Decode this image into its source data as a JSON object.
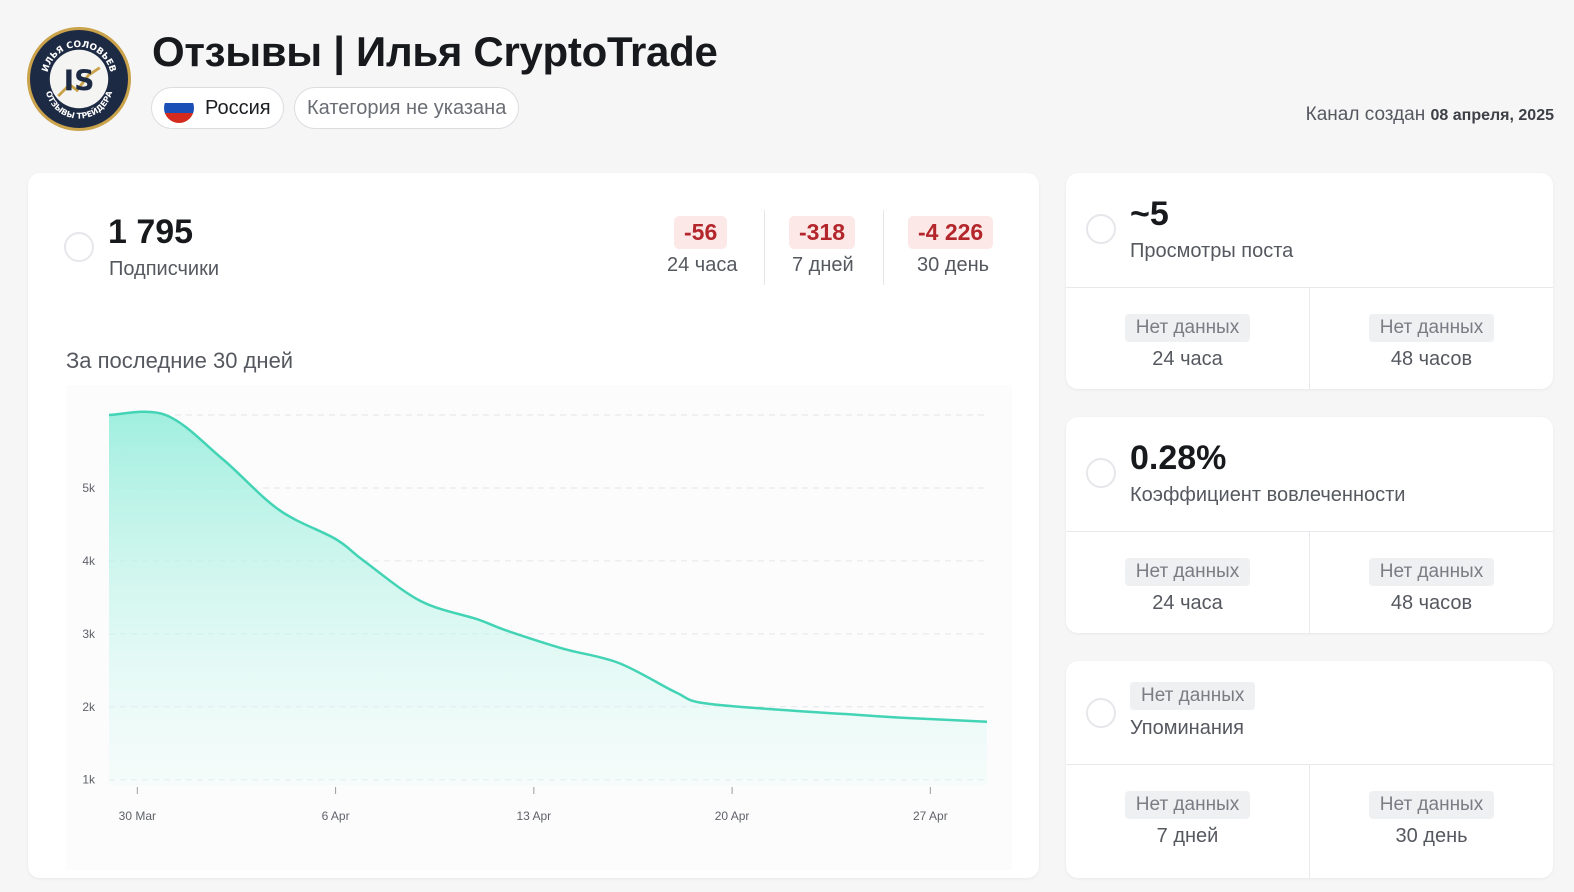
{
  "header": {
    "title": "Отзывы | Илья CryptoTrade",
    "logo_text_top": "ИЛЬЯ СОЛОВЬЕВ",
    "logo_text_bottom": "ОТЗЫВЫ ТРЕЙДЕРА",
    "logo_monogram": "IS",
    "country": "Россия",
    "category": "Категория не указана",
    "created_label": "Канал создан",
    "created_date": "08 апреля, 2025"
  },
  "subscribers": {
    "value": "1 795",
    "label": "Подписчики",
    "deltas": [
      {
        "value": "-56",
        "label": "24 часа"
      },
      {
        "value": "-318",
        "label": "7 дней"
      },
      {
        "value": "-4 226",
        "label": "30 день"
      }
    ],
    "chart_title": "За последние 30 дней"
  },
  "chart_data": {
    "type": "area",
    "title": "За последние 30 дней",
    "xlabel": "",
    "ylabel": "",
    "x_ticks": [
      "30 Mar",
      "6 Apr",
      "13 Apr",
      "20 Apr",
      "27 Apr"
    ],
    "y_ticks": [
      "1k",
      "2k",
      "3k",
      "4k",
      "5k"
    ],
    "ylim": [
      900,
      6000
    ],
    "grid": true,
    "color": "#43d3b5",
    "x": [
      0,
      2,
      4,
      6,
      8,
      9,
      11,
      13,
      14,
      16,
      18,
      20,
      21,
      24,
      26,
      28,
      31
    ],
    "values": [
      6000,
      6000,
      5400,
      4700,
      4300,
      4000,
      3450,
      3200,
      3050,
      2800,
      2600,
      2200,
      2050,
      1950,
      1900,
      1850,
      1795
    ],
    "x_start_label": "30 Mar",
    "tick_positions": [
      1,
      8,
      15,
      22,
      29
    ]
  },
  "views": {
    "value": "~5",
    "label": "Просмотры поста",
    "cells": [
      {
        "value": "Нет данных",
        "label": "24 часа"
      },
      {
        "value": "Нет данных",
        "label": "48 часов"
      }
    ]
  },
  "engagement": {
    "value": "0.28%",
    "label": "Коэффициент вовлеченности",
    "cells": [
      {
        "value": "Нет данных",
        "label": "24 часа"
      },
      {
        "value": "Нет данных",
        "label": "48 часов"
      }
    ]
  },
  "mentions": {
    "value": "Нет данных",
    "label": "Упоминания",
    "cells": [
      {
        "value": "Нет данных",
        "label": "7 дней"
      },
      {
        "value": "Нет данных",
        "label": "30 день"
      }
    ]
  }
}
